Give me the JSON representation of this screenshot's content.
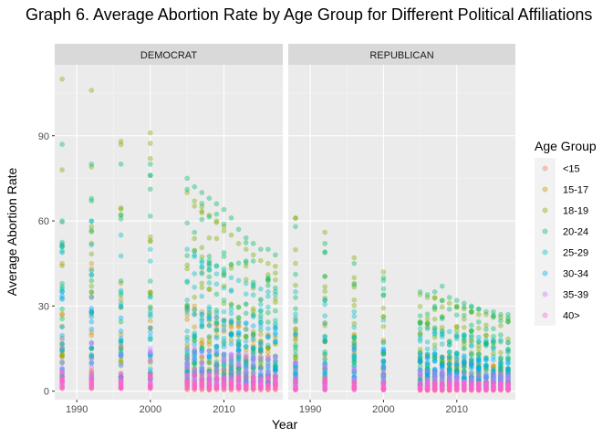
{
  "chart_data": {
    "type": "scatter",
    "title": "Graph 6. Average Abortion Rate by Age Group for Different Political Affiliations",
    "xlabel": "Year",
    "ylabel": "Average Abortion Rate",
    "xlim": [
      1987,
      2018
    ],
    "ylim": [
      -3,
      115
    ],
    "x_ticks": [
      1990,
      2000,
      2010
    ],
    "y_ticks": [
      0,
      30,
      60,
      90
    ],
    "grid": true,
    "point_alpha": 0.4,
    "legend": {
      "title": "Age Group",
      "position": "right"
    },
    "panels": [
      "DEMOCRAT",
      "REPUBLICAN"
    ],
    "years": [
      1988,
      1992,
      1996,
      2000,
      2005,
      2006,
      2007,
      2008,
      2009,
      2010,
      2011,
      2012,
      2013,
      2014,
      2015,
      2016,
      2017
    ],
    "series": [
      {
        "name": "<15",
        "color": "#F8766D",
        "DEMOCRAT": {
          "min": [
            1,
            1,
            1,
            1,
            0.5,
            0.5,
            0.5,
            0.5,
            0.5,
            0.5,
            0.5,
            0.5,
            0.5,
            0.5,
            0.5,
            0.5,
            0.5
          ],
          "max": [
            6,
            6,
            5,
            5,
            7,
            7,
            7,
            6,
            6,
            6,
            6,
            5,
            5,
            5,
            5,
            5,
            5
          ]
        },
        "REPUBLICAN": {
          "min": [
            0.5,
            0.5,
            0.5,
            0.5,
            0.3,
            0.3,
            0.3,
            0.3,
            0.3,
            0.3,
            0.3,
            0.3,
            0.3,
            0.3,
            0.3,
            0.3,
            0.3
          ],
          "max": [
            4,
            4,
            3,
            3,
            3,
            3,
            3,
            3,
            3,
            3,
            3,
            3,
            3,
            3,
            3,
            3,
            3
          ]
        }
      },
      {
        "name": "15-17",
        "color": "#CD9600",
        "DEMOCRAT": {
          "min": [
            6,
            6,
            5,
            5,
            3,
            3,
            3,
            3,
            3,
            2,
            2,
            2,
            2,
            2,
            2,
            2,
            2
          ],
          "max": [
            45,
            45,
            38,
            35,
            30,
            30,
            28,
            27,
            26,
            25,
            24,
            23,
            22,
            21,
            20,
            20,
            19
          ]
        },
        "REPUBLICAN": {
          "min": [
            4,
            4,
            3,
            3,
            2,
            2,
            2,
            2,
            2,
            2,
            2,
            2,
            1,
            1,
            1,
            1,
            1
          ],
          "max": [
            25,
            24,
            20,
            18,
            12,
            12,
            12,
            12,
            11,
            11,
            10,
            10,
            9,
            9,
            9,
            8,
            8
          ]
        }
      },
      {
        "name": "18-19",
        "color": "#7CAE00",
        "DEMOCRAT": {
          "min": [
            12,
            12,
            10,
            10,
            8,
            8,
            8,
            7,
            7,
            6,
            6,
            6,
            5,
            5,
            5,
            5,
            5
          ],
          "max": [
            110,
            106,
            88,
            91,
            70,
            67,
            65,
            62,
            60,
            58,
            55,
            52,
            50,
            48,
            46,
            45,
            44
          ]
        },
        "REPUBLICAN": {
          "min": [
            8,
            8,
            7,
            6,
            5,
            5,
            5,
            5,
            4,
            4,
            4,
            4,
            4,
            3,
            3,
            3,
            3
          ],
          "max": [
            61,
            56,
            47,
            42,
            34,
            33,
            33,
            32,
            31,
            30,
            29,
            28,
            27,
            27,
            26,
            26,
            25
          ]
        }
      },
      {
        "name": "20-24",
        "color": "#00BE67",
        "DEMOCRAT": {
          "min": [
            15,
            15,
            14,
            12,
            10,
            10,
            10,
            10,
            9,
            9,
            9,
            8,
            8,
            8,
            8,
            7,
            7
          ],
          "max": [
            87,
            80,
            80,
            80,
            75,
            72,
            70,
            68,
            66,
            64,
            61,
            57,
            54,
            52,
            50,
            50,
            48
          ]
        },
        "REPUBLICAN": {
          "min": [
            10,
            10,
            9,
            8,
            6,
            6,
            6,
            6,
            6,
            6,
            5,
            5,
            5,
            5,
            5,
            5,
            5
          ],
          "max": [
            58,
            52,
            45,
            40,
            35,
            34,
            35,
            37,
            33,
            32,
            31,
            30,
            29,
            28,
            28,
            27,
            27
          ]
        }
      },
      {
        "name": "25-29",
        "color": "#00BFC4",
        "DEMOCRAT": {
          "min": [
            10,
            10,
            9,
            8,
            7,
            7,
            7,
            7,
            6,
            6,
            6,
            6,
            6,
            6,
            5,
            5,
            5
          ],
          "max": [
            60,
            60,
            55,
            50,
            50,
            48,
            46,
            45,
            44,
            42,
            40,
            39,
            38,
            37,
            36,
            35,
            34
          ]
        },
        "REPUBLICAN": {
          "min": [
            6,
            6,
            6,
            5,
            4,
            4,
            4,
            4,
            4,
            4,
            4,
            4,
            4,
            3,
            3,
            3,
            3
          ],
          "max": [
            35,
            32,
            28,
            25,
            22,
            22,
            22,
            21,
            21,
            20,
            20,
            19,
            19,
            18,
            18,
            18,
            17
          ]
        }
      },
      {
        "name": "30-34",
        "color": "#00A9FF",
        "DEMOCRAT": {
          "min": [
            5,
            5,
            5,
            4,
            4,
            4,
            4,
            4,
            4,
            4,
            4,
            4,
            3,
            3,
            3,
            3,
            3
          ],
          "max": [
            35,
            33,
            30,
            28,
            28,
            27,
            27,
            26,
            26,
            25,
            25,
            24,
            24,
            23,
            23,
            22,
            22
          ]
        },
        "REPUBLICAN": {
          "min": [
            3,
            3,
            3,
            3,
            2,
            2,
            2,
            2,
            2,
            2,
            2,
            2,
            2,
            2,
            2,
            2,
            2
          ],
          "max": [
            20,
            18,
            16,
            15,
            13,
            13,
            13,
            12,
            12,
            12,
            12,
            11,
            11,
            11,
            11,
            10,
            10
          ]
        }
      },
      {
        "name": "35-39",
        "color": "#C77CFF",
        "DEMOCRAT": {
          "min": [
            2,
            2,
            2,
            2,
            2,
            2,
            2,
            2,
            2,
            2,
            2,
            2,
            2,
            2,
            2,
            2,
            2
          ],
          "max": [
            18,
            17,
            16,
            15,
            15,
            15,
            14,
            14,
            14,
            13,
            13,
            13,
            13,
            12,
            12,
            12,
            12
          ]
        },
        "REPUBLICAN": {
          "min": [
            1,
            1,
            1,
            1,
            1,
            1,
            1,
            1,
            1,
            1,
            1,
            1,
            1,
            1,
            1,
            1,
            1
          ],
          "max": [
            10,
            9,
            8,
            8,
            7,
            7,
            7,
            7,
            6,
            6,
            6,
            6,
            6,
            6,
            6,
            6,
            6
          ]
        }
      },
      {
        "name": "40>",
        "color": "#FF61CC",
        "DEMOCRAT": {
          "min": [
            1,
            1,
            1,
            1,
            1,
            1,
            1,
            1,
            1,
            1,
            1,
            1,
            1,
            1,
            1,
            1,
            1
          ],
          "max": [
            7,
            7,
            6,
            6,
            6,
            6,
            6,
            6,
            5,
            5,
            5,
            5,
            5,
            5,
            5,
            5,
            5
          ]
        },
        "REPUBLICAN": {
          "min": [
            0.5,
            0.5,
            0.5,
            0.5,
            0.5,
            0.5,
            0.5,
            0.5,
            0.5,
            0.5,
            0.5,
            0.5,
            0.5,
            0.5,
            0.5,
            0.5,
            0.5
          ],
          "max": [
            4,
            4,
            3,
            3,
            3,
            3,
            3,
            3,
            3,
            3,
            3,
            3,
            3,
            3,
            3,
            3,
            3
          ]
        }
      }
    ]
  }
}
